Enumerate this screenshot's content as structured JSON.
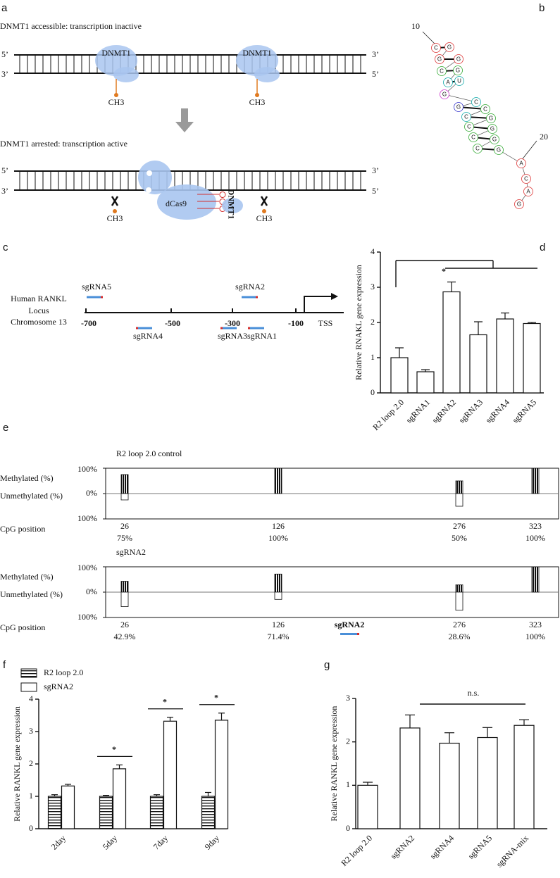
{
  "panel_labels": [
    "a",
    "b",
    "c",
    "d",
    "e",
    "f",
    "g"
  ],
  "panel_a": {
    "top_title": "DNMT1 accessible: transcription inactive",
    "bottom_title": "DNMT1 arrested: transcription active",
    "five_prime": "5’",
    "three_prime": "3’",
    "dnmt1": "DNMT1",
    "ch3": "CH3",
    "dcas9": "dCas9"
  },
  "panel_b": {
    "start_index": "10",
    "end_index": "20",
    "nucleotides": [
      "C",
      "G",
      "G",
      "G",
      "C",
      "G",
      "A",
      "U",
      "G",
      "C",
      "G",
      "C",
      "C",
      "G",
      "C",
      "G",
      "C",
      "G",
      "C",
      "G",
      "A",
      "C",
      "A",
      "G"
    ]
  },
  "panel_c": {
    "locus_lines": [
      "Human RANKL",
      "Locus",
      "Chromosome 13"
    ],
    "positions": [
      "-700",
      "-500",
      "-300",
      "-100",
      "TSS"
    ],
    "guides": [
      "sgRNA5",
      "sgRNA2",
      "sgRNA4",
      "sgRNA3",
      "sgRNA1"
    ]
  },
  "chart_data": [
    {
      "type": "bar",
      "y_label": "Relative RNAKL gene expression",
      "categories": [
        "R2 loop 2.0",
        "sgRNA1",
        "sgRNA2",
        "sgRNA3",
        "sgRNA4",
        "sgRNA5"
      ],
      "values": [
        1.0,
        0.6,
        2.87,
        1.65,
        2.1,
        1.97
      ],
      "errors": [
        0.28,
        0.06,
        0.28,
        0.37,
        0.17,
        0.03
      ],
      "ylim": [
        0,
        4
      ],
      "yticks": [
        0,
        1,
        2,
        3,
        4
      ],
      "annotation": "*"
    },
    {
      "type": "diverging_bar",
      "title": "R2 loop 2.0 control",
      "x_label": "CpG position",
      "categories": [
        "26",
        "126",
        "276",
        "323"
      ],
      "series": [
        {
          "name": "Methylated (%)",
          "values": [
            75,
            100,
            50,
            100
          ],
          "value_labels": [
            "75%",
            "100%",
            "50%",
            "100%"
          ]
        },
        {
          "name": "Unmethylated (%)",
          "values": [
            -25,
            0,
            -50,
            0
          ]
        }
      ],
      "ylim": [
        -100,
        100
      ],
      "yticks": [
        {
          "value": 100,
          "label": "100%"
        },
        {
          "value": 0,
          "label": "0%"
        },
        {
          "value": -100,
          "label": "100%"
        }
      ]
    },
    {
      "type": "diverging_bar",
      "title": "sgRNA2",
      "x_label": "CpG position",
      "annotation": "sgRNA2",
      "categories": [
        "26",
        "126",
        "276",
        "323"
      ],
      "series": [
        {
          "name": "Methylated (%)",
          "values": [
            42.9,
            71.4,
            28.6,
            100
          ],
          "value_labels": [
            "42.9%",
            "71.4%",
            "28.6%",
            "100%"
          ]
        },
        {
          "name": "Unmethylated (%)",
          "values": [
            -57.1,
            -28.6,
            -71.4,
            0
          ]
        }
      ],
      "ylim": [
        -100,
        100
      ],
      "yticks": [
        {
          "value": 100,
          "label": "100%"
        },
        {
          "value": 0,
          "label": "0%"
        },
        {
          "value": -100,
          "label": "100%"
        }
      ]
    },
    {
      "type": "grouped_bar",
      "y_label": "Relative RANKL gene expression",
      "categories": [
        "2day",
        "5day",
        "7day",
        "9day"
      ],
      "series": [
        {
          "name": "R2 loop 2.0",
          "values": [
            1.0,
            1.0,
            1.0,
            1.0
          ],
          "errors": [
            0.05,
            0.03,
            0.05,
            0.12
          ]
        },
        {
          "name": "sgRNA2",
          "values": [
            1.32,
            1.85,
            3.32,
            3.35
          ],
          "errors": [
            0.05,
            0.12,
            0.12,
            0.22
          ]
        }
      ],
      "significance": [
        false,
        true,
        true,
        true
      ],
      "ylim": [
        0,
        4
      ],
      "yticks": [
        0,
        1,
        2,
        3,
        4
      ],
      "annotation": "*"
    },
    {
      "type": "bar",
      "y_label": "Relative RANKL gene expression",
      "categories": [
        "R2 loop 2.0",
        "sgRNA2",
        "sgRNA4",
        "sgRNA5",
        "sgRNA-mix"
      ],
      "values": [
        1.0,
        2.32,
        1.97,
        2.1,
        2.38
      ],
      "errors": [
        0.07,
        0.3,
        0.24,
        0.23,
        0.13
      ],
      "ylim": [
        0,
        3
      ],
      "yticks": [
        0,
        1,
        2,
        3
      ],
      "annotation": "n.s."
    }
  ]
}
